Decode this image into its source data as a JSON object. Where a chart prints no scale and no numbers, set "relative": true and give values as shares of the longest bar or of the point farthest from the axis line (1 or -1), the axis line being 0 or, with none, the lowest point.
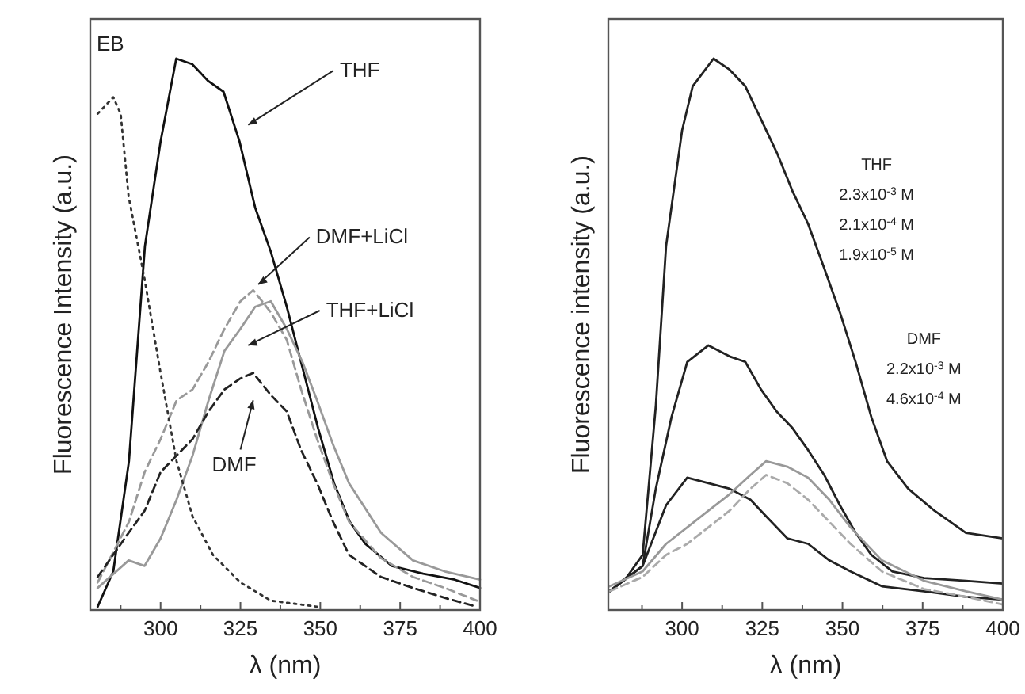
{
  "chart_data": [
    {
      "type": "line",
      "relative": true,
      "xlabel": "λ (nm)",
      "ylabel": "Fluorescence Intensity (a.u.)",
      "xlim": [
        278,
        400
      ],
      "xticks": [
        {
          "value": 287.5,
          "label": null
        },
        300,
        {
          "value": 312.5,
          "label": null
        },
        325,
        {
          "value": 337.5,
          "label": null
        },
        350,
        {
          "value": 362.5,
          "label": null
        },
        375,
        {
          "value": 387.5,
          "label": null
        },
        400
      ],
      "grid": false,
      "marker": "none",
      "series": [
        {
          "color": "#111111",
          "line_style": "solid",
          "x": [
            280.3,
            285.2,
            290.1,
            295.1,
            300,
            304.9,
            309.9,
            314.8,
            319.7,
            324.7,
            329.6,
            334.5,
            339.5,
            344.4,
            349.3,
            354.3,
            359.2,
            364.1,
            372.4,
            382.2,
            392.1,
            400
          ],
          "values": [
            0.006,
            0.07,
            0.27,
            0.66,
            0.85,
            1.0,
            0.99,
            0.96,
            0.94,
            0.85,
            0.73,
            0.65,
            0.55,
            0.44,
            0.33,
            0.23,
            0.16,
            0.12,
            0.08,
            0.066,
            0.055,
            0.04
          ]
        },
        {
          "color": "#999999",
          "line_style": "dashed",
          "x": [
            280.3,
            290.1,
            295,
            300,
            305,
            310,
            315,
            320,
            325,
            329,
            334.5,
            339.5,
            344,
            349,
            354,
            359,
            369,
            379,
            389,
            399
          ],
          "values": [
            0.05,
            0.16,
            0.25,
            0.31,
            0.38,
            0.4,
            0.45,
            0.51,
            0.56,
            0.58,
            0.54,
            0.49,
            0.4,
            0.31,
            0.23,
            0.16,
            0.094,
            0.06,
            0.04,
            0.017
          ]
        },
        {
          "color": "#999999",
          "line_style": "solid",
          "x": [
            280.3,
            290,
            295,
            300,
            305,
            310,
            315,
            320,
            325,
            329.6,
            334.5,
            339.5,
            344.4,
            349,
            354,
            359,
            369,
            379,
            389,
            400
          ],
          "values": [
            0.04,
            0.09,
            0.08,
            0.13,
            0.2,
            0.28,
            0.38,
            0.47,
            0.51,
            0.55,
            0.56,
            0.51,
            0.45,
            0.38,
            0.3,
            0.23,
            0.14,
            0.09,
            0.07,
            0.055
          ]
        },
        {
          "color": "#222222",
          "line_style": "dashed",
          "x": [
            280.3,
            290,
            295,
            300,
            305,
            310,
            315,
            320,
            325,
            329,
            334.5,
            339.5,
            344,
            349,
            354,
            359,
            369,
            379,
            389,
            399
          ],
          "values": [
            0.06,
            0.14,
            0.18,
            0.25,
            0.28,
            0.31,
            0.36,
            0.4,
            0.42,
            0.43,
            0.39,
            0.36,
            0.29,
            0.23,
            0.16,
            0.1,
            0.06,
            0.04,
            0.022,
            0.006
          ]
        },
        {
          "color": "#333333",
          "line_style": "dotted",
          "x": [
            280.3,
            285.2,
            287.5,
            290,
            295,
            300,
            305,
            310,
            316.4,
            325,
            334.5,
            349
          ],
          "values": [
            0.9,
            0.93,
            0.9,
            0.75,
            0.6,
            0.43,
            0.27,
            0.17,
            0.1,
            0.05,
            0.017,
            0.006
          ]
        }
      ],
      "annotations": [
        "THF",
        "DMF+LiCl",
        "THF+LiCl",
        "DMF",
        "EB"
      ]
    },
    {
      "type": "line",
      "relative": true,
      "xlabel": "λ (nm)",
      "ylabel": "Fluorescence intensity (a.u.)",
      "xlim": [
        277,
        400
      ],
      "xticks": [
        {
          "value": 287.5,
          "label": null
        },
        300,
        {
          "value": 312.5,
          "label": null
        },
        325,
        {
          "value": 337.5,
          "label": null
        },
        350,
        {
          "value": 362.5,
          "label": null
        },
        375,
        {
          "value": 387.5,
          "label": null
        },
        400
      ],
      "grid": false,
      "marker": "none",
      "series": [
        {
          "color": "#222222",
          "line_style": "solid",
          "x": [
            277.4,
            282.8,
            287.7,
            291.8,
            295,
            300,
            303.3,
            309.8,
            314.8,
            319.7,
            324.6,
            329.5,
            334.4,
            339.3,
            344.3,
            349.2,
            354.1,
            359,
            363.9,
            370.5,
            378.7,
            388.5,
            400
          ],
          "values": [
            0.034,
            0.06,
            0.1,
            0.37,
            0.66,
            0.87,
            0.95,
            1.0,
            0.98,
            0.95,
            0.89,
            0.83,
            0.76,
            0.7,
            0.62,
            0.54,
            0.45,
            0.35,
            0.27,
            0.22,
            0.18,
            0.14,
            0.13
          ]
        },
        {
          "color": "#222222",
          "line_style": "solid",
          "x": [
            277.4,
            287.7,
            291.8,
            296.7,
            301.6,
            308.2,
            314.8,
            319.7,
            324.6,
            329.5,
            334.4,
            339.3,
            344.3,
            349.2,
            354.1,
            359,
            365.6,
            375.4,
            388.5,
            400
          ],
          "values": [
            0.034,
            0.08,
            0.22,
            0.35,
            0.45,
            0.48,
            0.46,
            0.45,
            0.4,
            0.36,
            0.33,
            0.29,
            0.245,
            0.19,
            0.14,
            0.1,
            0.07,
            0.058,
            0.053,
            0.048
          ]
        },
        {
          "color": "#222222",
          "line_style": "solid",
          "x": [
            277.4,
            287.7,
            295,
            301.6,
            308.2,
            314.8,
            321.3,
            326.2,
            332.8,
            339.3,
            345.9,
            352.5,
            362.3,
            375.4,
            388.5,
            400
          ],
          "values": [
            0.034,
            0.08,
            0.19,
            0.24,
            0.23,
            0.22,
            0.2,
            0.17,
            0.13,
            0.12,
            0.09,
            0.07,
            0.043,
            0.034,
            0.024,
            0.019
          ]
        },
        {
          "color": "#999999",
          "line_style": "solid",
          "x": [
            277.4,
            287.7,
            295,
            301.6,
            308.2,
            314.8,
            321.3,
            326.2,
            332.8,
            339.3,
            345.9,
            352.5,
            362.3,
            375.4,
            388.5,
            400
          ],
          "values": [
            0.043,
            0.07,
            0.12,
            0.15,
            0.18,
            0.21,
            0.245,
            0.27,
            0.26,
            0.24,
            0.2,
            0.15,
            0.09,
            0.053,
            0.034,
            0.019
          ]
        },
        {
          "color": "#aaaaaa",
          "line_style": "dashed",
          "x": [
            277.4,
            287.7,
            295,
            301.6,
            308.2,
            314.8,
            321.3,
            326.2,
            332.8,
            339.3,
            345.9,
            352.5,
            362.3,
            375.4,
            388.5,
            400
          ],
          "values": [
            0.034,
            0.06,
            0.1,
            0.12,
            0.15,
            0.18,
            0.22,
            0.245,
            0.23,
            0.2,
            0.16,
            0.12,
            0.07,
            0.038,
            0.024,
            0.01
          ]
        }
      ],
      "annotations": [
        "THF",
        "2.3x10$^{-3}$ M",
        "2.1x10$^{-4}$ M",
        "1.9x10$^{-5}$ M",
        "DMF",
        "2.2x10$^{-3}$ M",
        "4.6x10$^{-4}$ M"
      ]
    }
  ]
}
